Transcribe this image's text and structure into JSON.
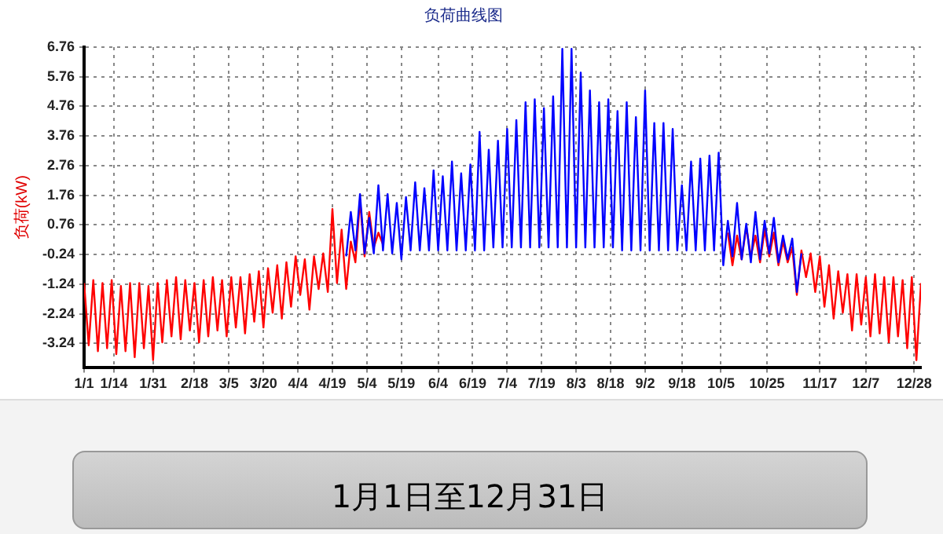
{
  "chart_data": {
    "type": "line",
    "title": "负荷曲线图",
    "ylabel": "负荷(kW)",
    "annotations": [
      "1月1日至12月31日"
    ],
    "ylim": [
      -4.06,
      6.76
    ],
    "yticks": [
      -3.24,
      -2.24,
      -1.24,
      -0.24,
      0.76,
      1.76,
      2.76,
      3.76,
      4.76,
      5.76,
      6.76
    ],
    "xlim": [
      "--01-01",
      "--12-31"
    ],
    "xticks": [
      {
        "value": "--01-01",
        "label": "1/1"
      },
      {
        "value": "--01-14",
        "label": "1/14"
      },
      {
        "value": "--01-31",
        "label": "1/31"
      },
      {
        "value": "--02-18",
        "label": "2/18"
      },
      {
        "value": "--03-05",
        "label": "3/5"
      },
      {
        "value": "--03-20",
        "label": "3/20"
      },
      {
        "value": "--04-04",
        "label": "4/4"
      },
      {
        "value": "--04-19",
        "label": "4/19"
      },
      {
        "value": "--05-04",
        "label": "5/4"
      },
      {
        "value": "--05-19",
        "label": "5/19"
      },
      {
        "value": "--06-04",
        "label": "6/4"
      },
      {
        "value": "--06-19",
        "label": "6/19"
      },
      {
        "value": "--07-04",
        "label": "7/4"
      },
      {
        "value": "--07-19",
        "label": "7/19"
      },
      {
        "value": "--08-03",
        "label": "8/3"
      },
      {
        "value": "--08-18",
        "label": "8/18"
      },
      {
        "value": "--09-02",
        "label": "9/2"
      },
      {
        "value": "--09-18",
        "label": "9/18"
      },
      {
        "value": "--10-05",
        "label": "10/5"
      },
      {
        "value": "--10-25",
        "label": "10/25"
      },
      {
        "value": "--11-17",
        "label": "11/17"
      },
      {
        "value": "--12-07",
        "label": "12/7"
      },
      {
        "value": "--12-28",
        "label": "12/28"
      }
    ],
    "grid": true,
    "legend": false,
    "marker": "none",
    "line_style": "solid",
    "series": [
      {
        "color": "#ff0000",
        "x": [
          "--01-01",
          "--01-03",
          "--01-05",
          "--01-07",
          "--01-09",
          "--01-11",
          "--01-13",
          "--01-15",
          "--01-17",
          "--01-19",
          "--01-21",
          "--01-23",
          "--01-25",
          "--01-27",
          "--01-29",
          "--01-31",
          "--02-02",
          "--02-04",
          "--02-06",
          "--02-08",
          "--02-10",
          "--02-12",
          "--02-14",
          "--02-16",
          "--02-18",
          "--02-20",
          "--02-22",
          "--02-24",
          "--02-26",
          "--02-28",
          "--03-02",
          "--03-04",
          "--03-06",
          "--03-08",
          "--03-10",
          "--03-12",
          "--03-14",
          "--03-16",
          "--03-18",
          "--03-20",
          "--03-22",
          "--03-24",
          "--03-26",
          "--03-28",
          "--03-30",
          "--04-01",
          "--04-03",
          "--04-05",
          "--04-07",
          "--04-09",
          "--04-11",
          "--04-13",
          "--04-15",
          "--04-17",
          "--04-19",
          "--04-21",
          "--04-23",
          "--04-25",
          "--04-27",
          "--04-29",
          "--05-01",
          "--05-03",
          "--05-05",
          "--05-07",
          "--05-09",
          "--05-11",
          "--05-13",
          "--10-08",
          "--10-10",
          "--10-12",
          "--10-14",
          "--10-16",
          "--10-18",
          "--10-20",
          "--10-22",
          "--10-24",
          "--10-26",
          "--10-28",
          "--10-30",
          "--11-01",
          "--11-03",
          "--11-05",
          "--11-07",
          "--11-09",
          "--11-11",
          "--11-13",
          "--11-15",
          "--11-17",
          "--11-19",
          "--11-21",
          "--11-23",
          "--11-25",
          "--11-27",
          "--11-29",
          "--12-01",
          "--12-03",
          "--12-05",
          "--12-07",
          "--12-09",
          "--12-11",
          "--12-13",
          "--12-15",
          "--12-17",
          "--12-19",
          "--12-21",
          "--12-23",
          "--12-25",
          "--12-27",
          "--12-29",
          "--12-31"
        ],
        "values": [
          -1.2,
          -3.3,
          -1.1,
          -3.5,
          -1.2,
          -3.4,
          -1.1,
          -3.6,
          -1.3,
          -3.5,
          -1.2,
          -3.7,
          -1.2,
          -3.4,
          -1.3,
          -3.8,
          -1.2,
          -3.2,
          -1.1,
          -3.0,
          -1.0,
          -3.1,
          -1.1,
          -2.8,
          -1.2,
          -3.2,
          -1.1,
          -3.0,
          -1.0,
          -2.8,
          -1.1,
          -3.0,
          -1.0,
          -2.7,
          -1.0,
          -2.9,
          -0.9,
          -2.5,
          -0.8,
          -2.7,
          -0.7,
          -2.2,
          -0.6,
          -2.4,
          -0.5,
          -2.0,
          -0.3,
          -1.6,
          -0.4,
          -2.1,
          -0.3,
          -1.4,
          -0.2,
          -1.5,
          1.3,
          -1.2,
          0.6,
          -1.4,
          0.2,
          -0.5,
          1.6,
          -0.3,
          1.2,
          0.0,
          0.5,
          0.1,
          null,
          0.5,
          -0.6,
          0.4,
          -0.4,
          0.7,
          -0.3,
          0.4,
          -0.5,
          0.6,
          -0.3,
          0.5,
          -0.6,
          0.2,
          -0.5,
          0.0,
          -1.6,
          -0.1,
          -1.0,
          -0.2,
          -1.5,
          -0.3,
          -2.0,
          -0.6,
          -2.4,
          -0.8,
          -2.2,
          -0.9,
          -2.8,
          -0.9,
          -2.6,
          -1.0,
          -3.0,
          -0.9,
          -2.9,
          -1.0,
          -3.2,
          -1.0,
          -3.0,
          -1.1,
          -3.4,
          -1.0,
          -3.8,
          -1.2
        ]
      },
      {
        "color": "#0000ff",
        "x": [
          "--04-25",
          "--04-27",
          "--04-29",
          "--05-01",
          "--05-03",
          "--05-05",
          "--05-07",
          "--05-09",
          "--05-11",
          "--05-13",
          "--05-15",
          "--05-17",
          "--05-19",
          "--05-21",
          "--05-23",
          "--05-25",
          "--05-27",
          "--05-29",
          "--05-31",
          "--06-02",
          "--06-04",
          "--06-06",
          "--06-08",
          "--06-10",
          "--06-12",
          "--06-14",
          "--06-16",
          "--06-18",
          "--06-20",
          "--06-22",
          "--06-24",
          "--06-26",
          "--06-28",
          "--06-30",
          "--07-02",
          "--07-04",
          "--07-06",
          "--07-08",
          "--07-10",
          "--07-12",
          "--07-14",
          "--07-16",
          "--07-18",
          "--07-20",
          "--07-22",
          "--07-24",
          "--07-26",
          "--07-28",
          "--07-30",
          "--08-01",
          "--08-03",
          "--08-05",
          "--08-07",
          "--08-09",
          "--08-11",
          "--08-13",
          "--08-15",
          "--08-17",
          "--08-19",
          "--08-21",
          "--08-23",
          "--08-25",
          "--08-27",
          "--08-29",
          "--08-31",
          "--09-02",
          "--09-04",
          "--09-06",
          "--09-08",
          "--09-10",
          "--09-12",
          "--09-14",
          "--09-16",
          "--09-18",
          "--09-20",
          "--09-22",
          "--09-24",
          "--09-26",
          "--09-28",
          "--09-30",
          "--10-02",
          "--10-04",
          "--10-06",
          "--10-08",
          "--10-10",
          "--10-12",
          "--10-14",
          "--10-16",
          "--10-18",
          "--10-20",
          "--10-22",
          "--10-24",
          "--10-26",
          "--10-28",
          "--10-30",
          "--11-01",
          "--11-03",
          "--11-05",
          "--11-07",
          "--11-09"
        ],
        "values": [
          -0.3,
          1.2,
          -0.1,
          1.8,
          -0.2,
          1.0,
          -0.2,
          2.1,
          -0.1,
          1.8,
          -0.2,
          1.5,
          -0.4,
          1.7,
          -0.1,
          2.2,
          -0.1,
          2.0,
          -0.1,
          2.6,
          -0.1,
          2.4,
          -0.1,
          2.9,
          -0.1,
          2.5,
          -0.1,
          2.8,
          -0.1,
          3.9,
          -0.1,
          3.3,
          0.0,
          3.6,
          0.0,
          4.0,
          0.0,
          4.3,
          0.0,
          4.9,
          0.0,
          5.0,
          0.0,
          4.7,
          0.0,
          5.1,
          0.0,
          6.7,
          0.0,
          6.7,
          0.0,
          5.9,
          0.0,
          5.3,
          0.0,
          4.9,
          0.0,
          5.0,
          0.0,
          4.6,
          -0.1,
          4.9,
          -0.1,
          4.4,
          -0.1,
          5.3,
          -0.1,
          4.2,
          -0.1,
          4.2,
          -0.1,
          4.0,
          -0.1,
          2.1,
          -0.1,
          2.9,
          -0.1,
          3.0,
          -0.1,
          3.1,
          -0.1,
          3.2,
          -0.6,
          0.9,
          -0.3,
          1.5,
          -0.4,
          0.8,
          -0.5,
          1.2,
          -0.4,
          0.9,
          -0.2,
          1.0,
          -0.5,
          0.4,
          -0.4,
          0.3,
          -1.5,
          -0.2
        ]
      }
    ]
  }
}
